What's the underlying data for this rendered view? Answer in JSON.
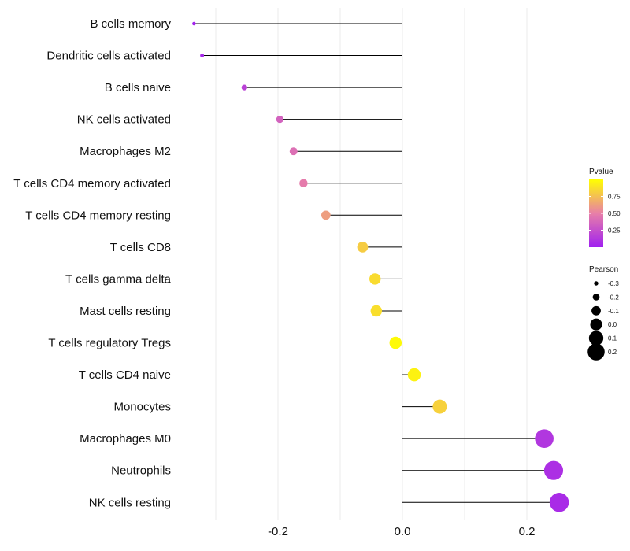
{
  "chart_data": {
    "type": "lollipop",
    "categories": [
      "B cells memory",
      "Dendritic cells activated",
      "B cells naive",
      "NK cells activated",
      "Macrophages M2",
      "T cells CD4 memory activated",
      "T cells CD4 memory resting",
      "T cells CD8",
      "T cells gamma delta",
      "Mast cells resting",
      "T cells regulatory  Tregs",
      "T cells CD4 naive",
      "Monocytes",
      "Macrophages M0",
      "Neutrophils",
      "NK cells resting"
    ],
    "pearson": [
      -0.335,
      -0.322,
      -0.254,
      -0.197,
      -0.175,
      -0.159,
      -0.123,
      -0.064,
      -0.044,
      -0.042,
      -0.011,
      0.019,
      0.06,
      0.228,
      0.243,
      0.252
    ],
    "pvalue": [
      0.02,
      0.04,
      0.18,
      0.35,
      0.42,
      0.48,
      0.62,
      0.8,
      0.86,
      0.87,
      0.98,
      0.95,
      0.82,
      0.12,
      0.08,
      0.06
    ],
    "xlim": [
      -0.37,
      0.3
    ],
    "x_ticks": [
      -0.2,
      0.0,
      0.2
    ],
    "x_tick_labels": [
      "-0.2",
      "0.0",
      "0.2"
    ],
    "minor_gridlines": [
      -0.3,
      -0.1,
      0.1
    ],
    "xlabel": "",
    "ylabel": "",
    "colors": {
      "low": "#a020f0",
      "mid": "#e87fa8",
      "high": "#ffff00",
      "stem": "#000000",
      "grid": "#ebebeb"
    },
    "legend_pvalue": {
      "title": "Pvalue",
      "values": [
        0.75,
        0.5,
        0.25
      ],
      "labels": [
        "0.75",
        "0.50",
        "0.25"
      ],
      "range": [
        0.0,
        1.0
      ]
    },
    "legend_pearson": {
      "title": "Pearson",
      "values": [
        -0.3,
        -0.2,
        -0.1,
        0.0,
        0.1,
        0.2
      ],
      "labels": [
        "-0.3",
        "-0.2",
        "-0.1",
        "0.0",
        "0.1",
        "0.2"
      ]
    },
    "legend_position": "right"
  }
}
